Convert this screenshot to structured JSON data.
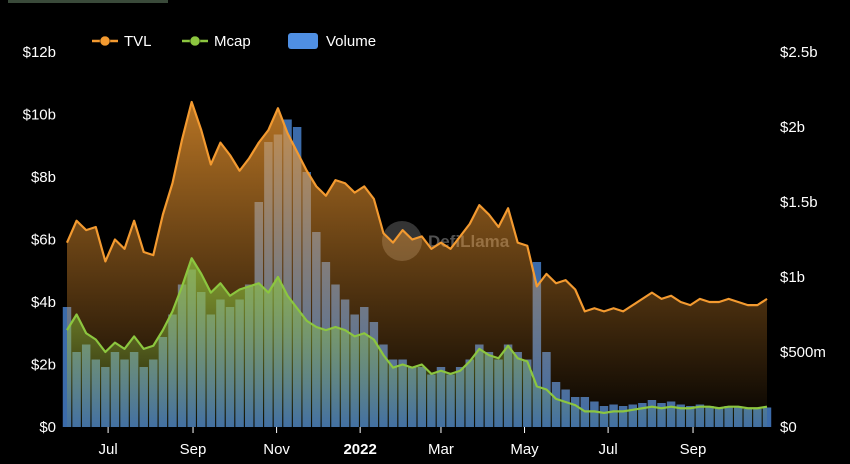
{
  "chart_data": {
    "type": "line",
    "title": "",
    "legend": {
      "placement": "top-left",
      "entries": [
        {
          "name": "TVL",
          "color": "#f39a30",
          "marker": "line"
        },
        {
          "name": "Mcap",
          "color": "#8cc63f",
          "marker": "line"
        },
        {
          "name": "Volume",
          "color": "#4f8fe3",
          "marker": "box"
        }
      ]
    },
    "watermark": "DefiLlama",
    "x_axis": {
      "start": "2021-06-01",
      "end": "2022-10-25",
      "ticks": [
        {
          "label": "Jul",
          "date": "2021-07-01",
          "bold": false
        },
        {
          "label": "Sep",
          "date": "2021-09-01",
          "bold": false
        },
        {
          "label": "Nov",
          "date": "2021-11-01",
          "bold": false
        },
        {
          "label": "2022",
          "date": "2022-01-01",
          "bold": true
        },
        {
          "label": "Mar",
          "date": "2022-03-01",
          "bold": false
        },
        {
          "label": "May",
          "date": "2022-05-01",
          "bold": false
        },
        {
          "label": "Jul",
          "date": "2022-07-01",
          "bold": false
        },
        {
          "label": "Sep",
          "date": "2022-09-01",
          "bold": false
        }
      ]
    },
    "y_left": {
      "ylim": [
        0,
        12
      ],
      "unit": "billions USD",
      "ticks": [
        {
          "value": 0,
          "label": "$0"
        },
        {
          "value": 2,
          "label": "$2b"
        },
        {
          "value": 4,
          "label": "$4b"
        },
        {
          "value": 6,
          "label": "$6b"
        },
        {
          "value": 8,
          "label": "$8b"
        },
        {
          "value": 10,
          "label": "$10b"
        },
        {
          "value": 12,
          "label": "$12b"
        }
      ]
    },
    "y_right": {
      "ylim": [
        0,
        2.5
      ],
      "unit": "billions USD",
      "ticks": [
        {
          "value": 0,
          "label": "$0"
        },
        {
          "value": 0.5,
          "label": "$500m"
        },
        {
          "value": 1,
          "label": "$1b"
        },
        {
          "value": 1.5,
          "label": "$1.5b"
        },
        {
          "value": 2,
          "label": "$2b"
        },
        {
          "value": 2.5,
          "label": "$2.5b"
        }
      ]
    },
    "series": [
      {
        "name": "TVL",
        "axis": "left",
        "type": "area",
        "color": "#f39a30",
        "points": [
          [
            "2021-06-01",
            5.9
          ],
          [
            "2021-06-08",
            6.6
          ],
          [
            "2021-06-15",
            6.3
          ],
          [
            "2021-06-22",
            6.4
          ],
          [
            "2021-06-29",
            5.3
          ],
          [
            "2021-07-06",
            6.0
          ],
          [
            "2021-07-13",
            5.7
          ],
          [
            "2021-07-20",
            6.6
          ],
          [
            "2021-07-27",
            5.6
          ],
          [
            "2021-08-03",
            5.5
          ],
          [
            "2021-08-10",
            6.8
          ],
          [
            "2021-08-17",
            7.8
          ],
          [
            "2021-08-24",
            9.2
          ],
          [
            "2021-08-31",
            10.4
          ],
          [
            "2021-09-07",
            9.5
          ],
          [
            "2021-09-14",
            8.4
          ],
          [
            "2021-09-21",
            9.1
          ],
          [
            "2021-09-28",
            8.7
          ],
          [
            "2021-10-05",
            8.2
          ],
          [
            "2021-10-12",
            8.6
          ],
          [
            "2021-10-19",
            9.1
          ],
          [
            "2021-10-26",
            9.5
          ],
          [
            "2021-11-02",
            10.2
          ],
          [
            "2021-11-09",
            9.4
          ],
          [
            "2021-11-16",
            8.8
          ],
          [
            "2021-11-23",
            8.2
          ],
          [
            "2021-11-30",
            7.7
          ],
          [
            "2021-12-07",
            7.4
          ],
          [
            "2021-12-14",
            7.9
          ],
          [
            "2021-12-21",
            7.8
          ],
          [
            "2021-12-28",
            7.5
          ],
          [
            "2022-01-04",
            7.7
          ],
          [
            "2022-01-11",
            7.3
          ],
          [
            "2022-01-18",
            6.2
          ],
          [
            "2022-01-25",
            5.9
          ],
          [
            "2022-02-01",
            6.3
          ],
          [
            "2022-02-08",
            6.0
          ],
          [
            "2022-02-15",
            6.1
          ],
          [
            "2022-02-22",
            5.7
          ],
          [
            "2022-03-01",
            5.9
          ],
          [
            "2022-03-08",
            5.7
          ],
          [
            "2022-03-15",
            6.1
          ],
          [
            "2022-03-22",
            6.5
          ],
          [
            "2022-03-29",
            7.1
          ],
          [
            "2022-04-05",
            6.8
          ],
          [
            "2022-04-12",
            6.4
          ],
          [
            "2022-04-19",
            7.0
          ],
          [
            "2022-04-26",
            5.9
          ],
          [
            "2022-05-03",
            5.8
          ],
          [
            "2022-05-10",
            4.5
          ],
          [
            "2022-05-17",
            4.9
          ],
          [
            "2022-05-24",
            4.6
          ],
          [
            "2022-05-31",
            4.7
          ],
          [
            "2022-06-07",
            4.4
          ],
          [
            "2022-06-14",
            3.7
          ],
          [
            "2022-06-21",
            3.8
          ],
          [
            "2022-06-28",
            3.7
          ],
          [
            "2022-07-05",
            3.8
          ],
          [
            "2022-07-12",
            3.7
          ],
          [
            "2022-07-19",
            3.9
          ],
          [
            "2022-07-26",
            4.1
          ],
          [
            "2022-08-02",
            4.3
          ],
          [
            "2022-08-09",
            4.1
          ],
          [
            "2022-08-16",
            4.2
          ],
          [
            "2022-08-23",
            4.0
          ],
          [
            "2022-08-30",
            3.9
          ],
          [
            "2022-09-06",
            4.1
          ],
          [
            "2022-09-13",
            4.0
          ],
          [
            "2022-09-20",
            4.0
          ],
          [
            "2022-09-27",
            4.1
          ],
          [
            "2022-10-04",
            4.0
          ],
          [
            "2022-10-11",
            3.9
          ],
          [
            "2022-10-18",
            3.9
          ],
          [
            "2022-10-25",
            4.1
          ]
        ]
      },
      {
        "name": "Mcap",
        "axis": "left",
        "type": "area",
        "color": "#8cc63f",
        "points": [
          [
            "2021-06-01",
            3.1
          ],
          [
            "2021-06-08",
            3.6
          ],
          [
            "2021-06-15",
            3.0
          ],
          [
            "2021-06-22",
            2.8
          ],
          [
            "2021-06-29",
            2.4
          ],
          [
            "2021-07-06",
            2.7
          ],
          [
            "2021-07-13",
            2.5
          ],
          [
            "2021-07-20",
            2.9
          ],
          [
            "2021-07-27",
            2.5
          ],
          [
            "2021-08-03",
            2.6
          ],
          [
            "2021-08-10",
            3.1
          ],
          [
            "2021-08-17",
            3.7
          ],
          [
            "2021-08-24",
            4.5
          ],
          [
            "2021-08-31",
            5.4
          ],
          [
            "2021-09-07",
            4.9
          ],
          [
            "2021-09-14",
            4.3
          ],
          [
            "2021-09-21",
            4.6
          ],
          [
            "2021-09-28",
            4.2
          ],
          [
            "2021-10-05",
            4.4
          ],
          [
            "2021-10-12",
            4.5
          ],
          [
            "2021-10-19",
            4.6
          ],
          [
            "2021-10-26",
            4.3
          ],
          [
            "2021-11-02",
            4.8
          ],
          [
            "2021-11-09",
            4.2
          ],
          [
            "2021-11-16",
            3.8
          ],
          [
            "2021-11-23",
            3.4
          ],
          [
            "2021-11-30",
            3.2
          ],
          [
            "2021-12-07",
            3.1
          ],
          [
            "2021-12-14",
            3.2
          ],
          [
            "2021-12-21",
            3.1
          ],
          [
            "2021-12-28",
            2.9
          ],
          [
            "2022-01-04",
            3.0
          ],
          [
            "2022-01-11",
            2.8
          ],
          [
            "2022-01-18",
            2.3
          ],
          [
            "2022-01-25",
            1.9
          ],
          [
            "2022-02-01",
            2.0
          ],
          [
            "2022-02-08",
            1.9
          ],
          [
            "2022-02-15",
            2.0
          ],
          [
            "2022-02-22",
            1.7
          ],
          [
            "2022-03-01",
            1.8
          ],
          [
            "2022-03-08",
            1.7
          ],
          [
            "2022-03-15",
            1.8
          ],
          [
            "2022-03-22",
            2.1
          ],
          [
            "2022-03-29",
            2.5
          ],
          [
            "2022-04-05",
            2.3
          ],
          [
            "2022-04-12",
            2.2
          ],
          [
            "2022-04-19",
            2.6
          ],
          [
            "2022-04-26",
            2.2
          ],
          [
            "2022-05-03",
            2.1
          ],
          [
            "2022-05-10",
            1.3
          ],
          [
            "2022-05-17",
            1.2
          ],
          [
            "2022-05-24",
            0.9
          ],
          [
            "2022-05-31",
            0.8
          ],
          [
            "2022-06-07",
            0.7
          ],
          [
            "2022-06-14",
            0.5
          ],
          [
            "2022-06-21",
            0.5
          ],
          [
            "2022-06-28",
            0.45
          ],
          [
            "2022-07-05",
            0.5
          ],
          [
            "2022-07-12",
            0.5
          ],
          [
            "2022-07-19",
            0.55
          ],
          [
            "2022-07-26",
            0.6
          ],
          [
            "2022-08-02",
            0.65
          ],
          [
            "2022-08-09",
            0.6
          ],
          [
            "2022-08-16",
            0.65
          ],
          [
            "2022-08-23",
            0.6
          ],
          [
            "2022-08-30",
            0.6
          ],
          [
            "2022-09-06",
            0.65
          ],
          [
            "2022-09-13",
            0.65
          ],
          [
            "2022-09-20",
            0.6
          ],
          [
            "2022-09-27",
            0.65
          ],
          [
            "2022-10-04",
            0.65
          ],
          [
            "2022-10-11",
            0.6
          ],
          [
            "2022-10-18",
            0.6
          ],
          [
            "2022-10-25",
            0.65
          ]
        ]
      },
      {
        "name": "Volume",
        "axis": "right",
        "type": "bar",
        "color": "#4f8fe3",
        "points": [
          [
            "2021-06-01",
            0.8
          ],
          [
            "2021-06-08",
            0.5
          ],
          [
            "2021-06-15",
            0.55
          ],
          [
            "2021-06-22",
            0.45
          ],
          [
            "2021-06-29",
            0.4
          ],
          [
            "2021-07-06",
            0.5
          ],
          [
            "2021-07-13",
            0.45
          ],
          [
            "2021-07-20",
            0.5
          ],
          [
            "2021-07-27",
            0.4
          ],
          [
            "2021-08-03",
            0.45
          ],
          [
            "2021-08-10",
            0.6
          ],
          [
            "2021-08-17",
            0.75
          ],
          [
            "2021-08-24",
            0.95
          ],
          [
            "2021-08-31",
            1.05
          ],
          [
            "2021-09-07",
            0.9
          ],
          [
            "2021-09-14",
            0.75
          ],
          [
            "2021-09-21",
            0.85
          ],
          [
            "2021-09-28",
            0.8
          ],
          [
            "2021-10-05",
            0.85
          ],
          [
            "2021-10-12",
            0.95
          ],
          [
            "2021-10-19",
            1.5
          ],
          [
            "2021-10-26",
            1.9
          ],
          [
            "2021-11-02",
            1.95
          ],
          [
            "2021-11-09",
            2.05
          ],
          [
            "2021-11-16",
            2.0
          ],
          [
            "2021-11-23",
            1.7
          ],
          [
            "2021-11-30",
            1.3
          ],
          [
            "2021-12-07",
            1.1
          ],
          [
            "2021-12-14",
            0.95
          ],
          [
            "2021-12-21",
            0.85
          ],
          [
            "2021-12-28",
            0.75
          ],
          [
            "2022-01-04",
            0.8
          ],
          [
            "2022-01-11",
            0.7
          ],
          [
            "2022-01-18",
            0.55
          ],
          [
            "2022-01-25",
            0.45
          ],
          [
            "2022-02-01",
            0.45
          ],
          [
            "2022-02-08",
            0.4
          ],
          [
            "2022-02-15",
            0.4
          ],
          [
            "2022-02-22",
            0.35
          ],
          [
            "2022-03-01",
            0.4
          ],
          [
            "2022-03-08",
            0.35
          ],
          [
            "2022-03-15",
            0.4
          ],
          [
            "2022-03-22",
            0.45
          ],
          [
            "2022-03-29",
            0.55
          ],
          [
            "2022-04-05",
            0.5
          ],
          [
            "2022-04-12",
            0.45
          ],
          [
            "2022-04-19",
            0.55
          ],
          [
            "2022-04-26",
            0.5
          ],
          [
            "2022-05-03",
            0.45
          ],
          [
            "2022-05-10",
            1.1
          ],
          [
            "2022-05-17",
            0.5
          ],
          [
            "2022-05-24",
            0.3
          ],
          [
            "2022-05-31",
            0.25
          ],
          [
            "2022-06-07",
            0.2
          ],
          [
            "2022-06-14",
            0.2
          ],
          [
            "2022-06-21",
            0.17
          ],
          [
            "2022-06-28",
            0.14
          ],
          [
            "2022-07-05",
            0.15
          ],
          [
            "2022-07-12",
            0.14
          ],
          [
            "2022-07-19",
            0.15
          ],
          [
            "2022-07-26",
            0.16
          ],
          [
            "2022-08-02",
            0.18
          ],
          [
            "2022-08-09",
            0.16
          ],
          [
            "2022-08-16",
            0.17
          ],
          [
            "2022-08-23",
            0.15
          ],
          [
            "2022-08-30",
            0.14
          ],
          [
            "2022-09-06",
            0.15
          ],
          [
            "2022-09-13",
            0.14
          ],
          [
            "2022-09-20",
            0.13
          ],
          [
            "2022-09-27",
            0.14
          ],
          [
            "2022-10-04",
            0.13
          ],
          [
            "2022-10-11",
            0.12
          ],
          [
            "2022-10-18",
            0.12
          ],
          [
            "2022-10-25",
            0.13
          ]
        ]
      }
    ]
  }
}
